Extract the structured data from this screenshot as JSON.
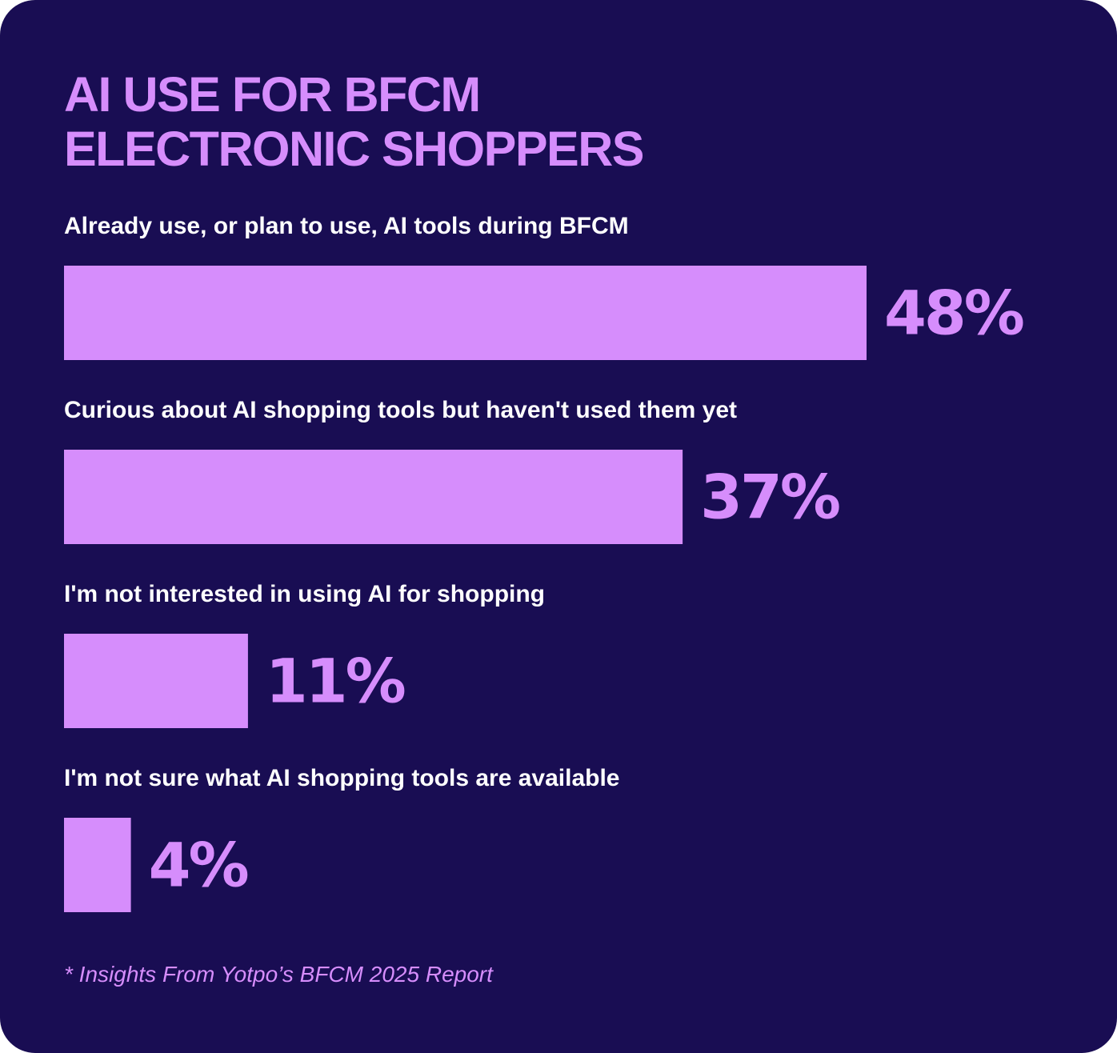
{
  "colors": {
    "background": "#190d53",
    "accent": "#d68dfc",
    "label": "#ffffff"
  },
  "title": "AI USE FOR BFCM\nELECTRONIC SHOPPERS",
  "footnote": "* Insights From Yotpo’s BFCM 2025 Report",
  "chart_data": {
    "type": "bar",
    "orientation": "horizontal",
    "categories": [
      "Already use, or plan to use, AI tools during BFCM",
      "Curious about AI shopping tools but haven't used them yet",
      "I'm not interested in using AI for shopping",
      "I'm not sure what AI shopping tools are available"
    ],
    "values": [
      48,
      37,
      11,
      4
    ],
    "value_labels": [
      "48%",
      "37%",
      "11%",
      "4%"
    ],
    "unit": "%",
    "xlim": [
      0,
      48
    ],
    "grid": false,
    "legend": "none"
  }
}
